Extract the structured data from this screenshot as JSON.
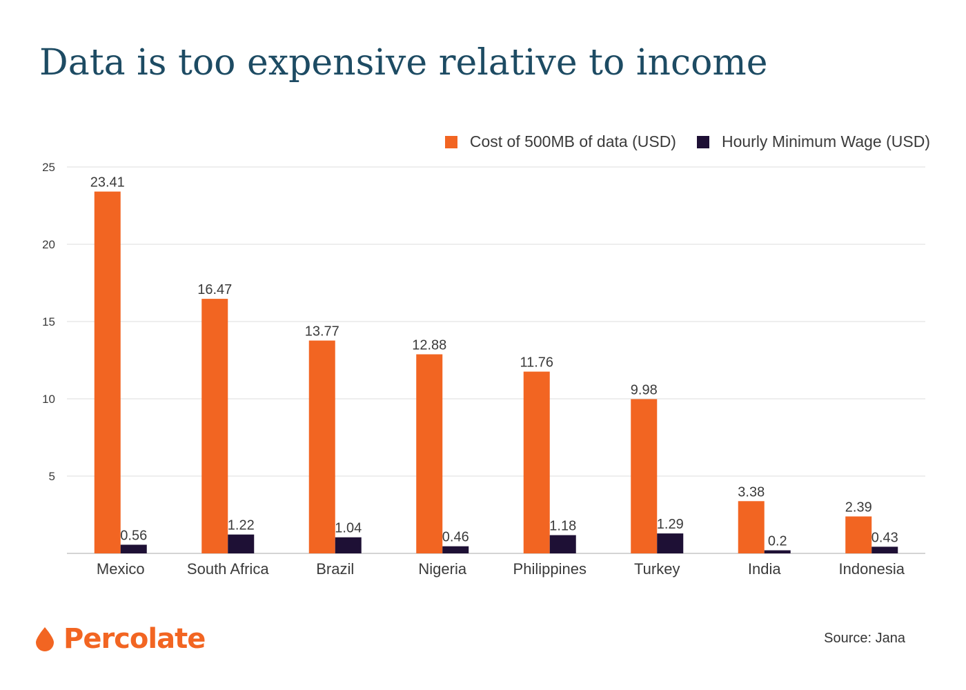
{
  "header": {
    "title": "Data is too expensive relative to income"
  },
  "colors": {
    "title": "#1d4b63",
    "series_cost": "#f26522",
    "series_wage": "#1e1035",
    "grid": "#dddddd",
    "axis": "#aaaaaa",
    "text": "#3a3a3a",
    "brand": "#f26522"
  },
  "chart_data": {
    "type": "bar",
    "title": "Data is too expensive relative to income",
    "xlabel": "",
    "ylabel": "",
    "categories": [
      "Mexico",
      "South Africa",
      "Brazil",
      "Nigeria",
      "Philippines",
      "Turkey",
      "India",
      "Indonesia"
    ],
    "series": [
      {
        "name": "Cost of 500MB of data (USD)",
        "values": [
          23.41,
          16.47,
          13.77,
          12.88,
          11.76,
          9.98,
          3.38,
          2.39
        ],
        "labels": [
          "23.41",
          "16.47",
          "13.77",
          "12.88",
          "11.76",
          "9.98",
          "3.38",
          "2.39"
        ]
      },
      {
        "name": "Hourly Minimum Wage (USD)",
        "values": [
          0.56,
          1.22,
          1.04,
          0.46,
          1.18,
          1.29,
          0.2,
          0.43
        ],
        "labels": [
          "0.56",
          "1.22",
          "1.04",
          "0.46",
          "1.18",
          "1.29",
          "0.2",
          "0.43"
        ]
      }
    ],
    "ylim": [
      0,
      25
    ],
    "yticks": [
      5,
      10,
      15,
      20,
      25
    ],
    "ytick_labels": [
      "5",
      "10",
      "15",
      "20",
      "25"
    ],
    "grid": true,
    "legend_position": "top-right"
  },
  "footer": {
    "logo_text": "Percolate",
    "logo_icon": "droplet-icon",
    "source": "Source: Jana"
  }
}
